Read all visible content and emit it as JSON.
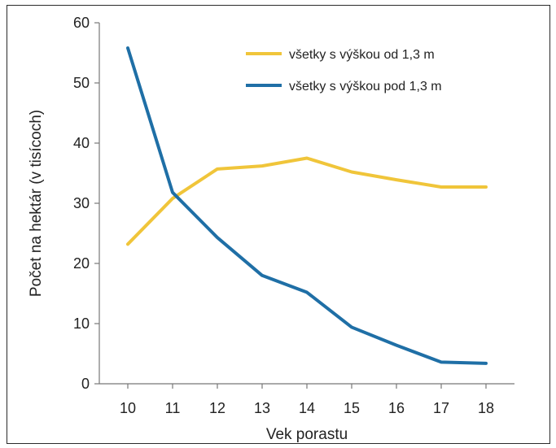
{
  "chart_data": {
    "type": "line",
    "xlabel": "Vek porastu",
    "ylabel": "Počet na hektár (v tisícoch)",
    "x": [
      10,
      11,
      12,
      13,
      14,
      15,
      16,
      17,
      18
    ],
    "xlim": [
      10,
      18
    ],
    "ylim": [
      0,
      60
    ],
    "yticks": [
      0,
      10,
      20,
      30,
      40,
      50,
      60
    ],
    "grid": false,
    "legend_position": "top-right",
    "series": [
      {
        "name": "všetky s výškou od 1,3 m",
        "color": "#f0c53a",
        "values": [
          23.2,
          30.8,
          35.7,
          36.2,
          37.5,
          35.2,
          33.9,
          32.7,
          32.7
        ]
      },
      {
        "name": "všetky s výškou pod 1,3 m",
        "color": "#1f6fa6",
        "values": [
          55.8,
          31.8,
          24.3,
          18.0,
          15.2,
          9.4,
          6.4,
          3.6,
          3.4
        ]
      }
    ]
  }
}
